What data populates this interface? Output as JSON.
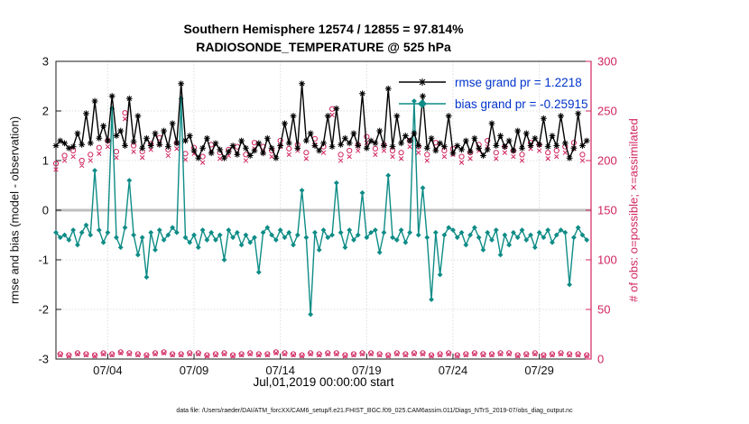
{
  "title": {
    "line1": "Southern Hemisphere 12574 / 12855 = 97.814%",
    "line2": "RADIOSONDE_TEMPERATURE @ 525 hPa"
  },
  "stats": {
    "assimilated_total": 12574,
    "possible_total": 12855,
    "percent_assimilated": "97.814%"
  },
  "legend": {
    "rmse_label": "rmse grand pr = 1.2218",
    "bias_label": "bias grand pr = -0.25915"
  },
  "axes": {
    "left_label": "rmse and bias (model - observation)",
    "right_label": "# of obs: o=possible; ×=assimilated",
    "x_label": "Jul,01,2019 00:00:00 start",
    "left_ticks": [
      -3,
      -2,
      -1,
      0,
      1,
      2,
      3
    ],
    "right_ticks": [
      0,
      50,
      100,
      150,
      200,
      250,
      300
    ],
    "x_tick_labels": [
      "07/04",
      "07/09",
      "07/14",
      "07/19",
      "07/24",
      "07/29"
    ],
    "x_tick_days": [
      3,
      8,
      13,
      18,
      23,
      28
    ],
    "x_range_days": [
      0,
      31
    ],
    "left_range": [
      -3,
      3
    ],
    "right_range": [
      0,
      300
    ]
  },
  "colors": {
    "rmse": "#000000",
    "bias": "#0e8c86",
    "obs": "#d02460",
    "legend_text": "#0033cc",
    "grid": "#dcdcdc",
    "zero_line": "#bfbfbf",
    "axis": "#1a1a1a"
  },
  "caption": "data file: /Users/raeder/DAI/ATM_forcXX/CAM6_setup/f.e21.FHIST_BGC.f09_025.CAM6assim.011/Diags_NTrS_2019-07/obs_diag_output.nc",
  "chart_data": {
    "type": "line",
    "title": "Southern Hemisphere 12574 / 12855 = 97.814% / RADIOSONDE_TEMPERATURE @ 525 hPa",
    "xlabel": "Jul,01,2019 00:00:00 start",
    "ylabel_left": "rmse and bias (model - observation)",
    "ylabel_right": "# of obs: o=possible; ×=assimilated",
    "ylim_left": [
      -3,
      3
    ],
    "ylim_right": [
      0,
      300
    ],
    "x_start": "2019-07-01 00:00",
    "x_step_hours": 6,
    "n_points": 124,
    "series": [
      {
        "name": "rmse",
        "axis": "left",
        "marker": "*",
        "color_key": "rmse",
        "values": [
          1.3,
          1.4,
          1.35,
          1.25,
          1.28,
          1.55,
          1.32,
          1.95,
          1.35,
          2.2,
          1.45,
          1.7,
          1.4,
          2.3,
          1.5,
          1.6,
          1.3,
          2.25,
          1.38,
          1.9,
          1.25,
          1.45,
          1.3,
          1.55,
          1.32,
          1.6,
          1.28,
          1.75,
          1.35,
          2.55,
          1.4,
          1.5,
          1.2,
          1.05,
          1.25,
          1.45,
          1.15,
          1.35,
          1.22,
          1.05,
          1.18,
          1.3,
          1.12,
          1.4,
          1.25,
          1.1,
          1.2,
          1.35,
          1.15,
          1.45,
          1.25,
          1.05,
          1.3,
          1.75,
          1.35,
          1.9,
          1.25,
          2.55,
          1.4,
          1.55,
          1.3,
          1.2,
          1.35,
          1.9,
          1.28,
          2.05,
          1.32,
          1.45,
          1.35,
          1.55,
          1.3,
          2.35,
          1.25,
          1.4,
          1.35,
          1.6,
          1.3,
          2.45,
          1.28,
          1.9,
          1.35,
          1.5,
          1.4,
          1.55,
          1.3,
          2.3,
          1.25,
          1.45,
          1.2,
          1.35,
          1.28,
          1.9,
          1.15,
          1.3,
          1.22,
          1.4,
          1.18,
          1.45,
          1.25,
          1.1,
          1.22,
          1.75,
          1.3,
          1.5,
          1.28,
          1.4,
          1.2,
          1.6,
          1.25,
          1.55,
          1.3,
          1.45,
          1.32,
          1.85,
          1.28,
          1.5,
          1.3,
          1.9,
          1.35,
          1.05,
          1.25,
          1.95,
          1.3,
          1.4
        ]
      },
      {
        "name": "bias",
        "axis": "left",
        "marker": "diamond",
        "color_key": "bias",
        "values": [
          -0.45,
          -0.55,
          -0.5,
          -0.6,
          -0.4,
          -0.7,
          -0.45,
          -0.3,
          -0.5,
          0.8,
          -0.4,
          -0.65,
          -0.45,
          2.05,
          -0.55,
          -0.75,
          -0.35,
          0.6,
          -0.5,
          -0.9,
          -0.55,
          -1.35,
          -0.45,
          -0.8,
          -0.4,
          -0.6,
          -0.5,
          -0.35,
          -0.45,
          2.25,
          -0.55,
          -0.65,
          -0.5,
          -0.75,
          -0.4,
          -0.6,
          -0.45,
          -0.6,
          -0.5,
          -1.0,
          -0.4,
          -0.55,
          -0.45,
          -0.7,
          -0.5,
          -0.65,
          -0.55,
          -1.25,
          -0.45,
          -0.35,
          -0.5,
          -0.6,
          -0.4,
          -0.55,
          -0.45,
          -0.7,
          -0.5,
          0.4,
          -0.55,
          -2.1,
          -0.45,
          -0.8,
          -0.4,
          -0.55,
          -0.5,
          0.55,
          -0.45,
          -0.75,
          -0.4,
          -0.6,
          -0.5,
          0.35,
          -0.55,
          -0.45,
          -0.4,
          -0.85,
          -0.45,
          0.7,
          -0.55,
          -0.6,
          -0.4,
          -0.65,
          -0.45,
          2.2,
          -0.5,
          0.45,
          -0.55,
          -1.8,
          -0.45,
          -1.3,
          -0.5,
          -0.35,
          -0.4,
          -0.55,
          -0.45,
          -0.7,
          -0.5,
          -0.35,
          -0.55,
          -0.8,
          -0.45,
          -0.6,
          -0.4,
          -0.9,
          -0.5,
          -0.7,
          -0.45,
          -0.55,
          -0.4,
          -0.6,
          -0.5,
          -0.75,
          -0.45,
          -0.55,
          -0.4,
          -0.65,
          -0.5,
          -0.4,
          -0.45,
          -1.5,
          -0.55,
          -0.35,
          -0.5,
          -0.6
        ]
      },
      {
        "name": "possible_obs",
        "axis": "right",
        "marker": "o",
        "color_key": "obs",
        "values": [
          197,
          5,
          205,
          4,
          210,
          6,
          200,
          5,
          206,
          4,
          213,
          6,
          220,
          5,
          209,
          7,
          248,
          6,
          215,
          5,
          209,
          4,
          217,
          6,
          223,
          7,
          211,
          5,
          218,
          5,
          207,
          6,
          213,
          6,
          204,
          4,
          216,
          5,
          208,
          6,
          211,
          4,
          214,
          5,
          206,
          6,
          218,
          5,
          214,
          5,
          210,
          7,
          220,
          6,
          212,
          5,
          216,
          4,
          208,
          6,
          222,
          5,
          214,
          6,
          252,
          6,
          206,
          4,
          210,
          5,
          216,
          6,
          224,
          6,
          212,
          5,
          216,
          4,
          210,
          6,
          208,
          5,
          220,
          6,
          214,
          6,
          206,
          4,
          218,
          5,
          210,
          6,
          212,
          4,
          204,
          5,
          208,
          6,
          216,
          5,
          220,
          5,
          208,
          6,
          214,
          6,
          210,
          4,
          206,
          5,
          218,
          6,
          216,
          4,
          208,
          5,
          210,
          6,
          214,
          5,
          218,
          5,
          206,
          4
        ]
      },
      {
        "name": "assimilated_obs",
        "axis": "right",
        "marker": "×",
        "color_key": "obs",
        "values": [
          191,
          4,
          200,
          3,
          204,
          5,
          195,
          4,
          200,
          3,
          207,
          5,
          214,
          4,
          203,
          6,
          242,
          5,
          209,
          4,
          203,
          3,
          211,
          5,
          217,
          6,
          205,
          4,
          212,
          4,
          201,
          5,
          207,
          5,
          198,
          3,
          210,
          4,
          202,
          5,
          205,
          3,
          208,
          4,
          200,
          5,
          212,
          4,
          208,
          4,
          204,
          6,
          214,
          5,
          206,
          4,
          210,
          3,
          202,
          5,
          216,
          4,
          208,
          5,
          246,
          5,
          200,
          3,
          204,
          4,
          210,
          5,
          218,
          5,
          206,
          4,
          210,
          3,
          204,
          5,
          202,
          4,
          214,
          5,
          208,
          5,
          200,
          3,
          212,
          4,
          204,
          5,
          206,
          3,
          198,
          4,
          202,
          5,
          210,
          4,
          214,
          4,
          202,
          5,
          208,
          5,
          204,
          3,
          200,
          4,
          212,
          5,
          210,
          3,
          202,
          4,
          204,
          5,
          208,
          4,
          212,
          4,
          200,
          3
        ]
      }
    ]
  }
}
